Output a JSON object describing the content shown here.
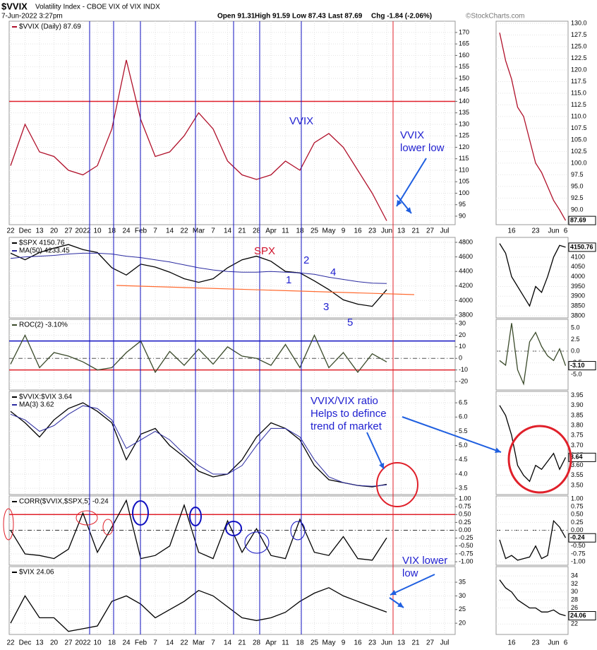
{
  "header": {
    "symbol": "$VVIX",
    "description": "Volatility Index - CBOE VIX of VIX INDX",
    "date": "7-Jun-2022 3:27pm",
    "open": "Open 91.31",
    "high": "High 91.59",
    "low": "Low 87.43",
    "last": "Last 87.69",
    "change": "Chg -1.84 (-2.06%)",
    "source": "©StockCharts.com"
  },
  "chart_data": {
    "type": "line",
    "categories": [
      "22",
      "Dec",
      "13",
      "20",
      "27",
      "2022",
      "10",
      "18",
      "24",
      "Feb",
      "7",
      "14",
      "22",
      "Mar",
      "7",
      "14",
      "21",
      "28",
      "Apr",
      "11",
      "18",
      "25",
      "May",
      "9",
      "16",
      "23",
      "Jun",
      "13",
      "21",
      "27",
      "Jul"
    ],
    "zoom_categories": [
      null,
      null,
      "16",
      null,
      null,
      null,
      "23",
      null,
      null,
      "Jun",
      null,
      "6"
    ],
    "panels": [
      {
        "ylim": [
          86.3,
          174.9
        ],
        "yticks": [
          90,
          95,
          100,
          105,
          110,
          115,
          120,
          125,
          130,
          135,
          140,
          145,
          150,
          155,
          160,
          165,
          170
        ],
        "hlines": [
          {
            "value": 140,
            "color": "#e0202a"
          }
        ],
        "series": [
          {
            "name": "$VVIX (Daily) 87.69",
            "color": "#b0102a",
            "values": [
              112,
              130,
              118,
              116,
              110,
              108,
              112,
              128,
              158,
              132,
              116,
              118,
              125,
              135,
              128,
              114,
              108,
              106,
              108,
              114,
              110,
              122,
              126,
              120,
              110,
              100,
              88,
              null,
              null,
              null,
              null
            ]
          }
        ],
        "zoom": {
          "ylim": [
            86.8,
            130.45
          ],
          "yticks": [
            {
              "value": 90,
              "label": "90.0"
            },
            92.5,
            {
              "value": 95,
              "label": "95.0"
            },
            97.5,
            {
              "value": 100,
              "label": "100.0"
            },
            102.5,
            {
              "value": 105,
              "label": "105.0"
            },
            107.5,
            {
              "value": 110,
              "label": "110.0"
            },
            112.5,
            {
              "value": 115,
              "label": "115.0"
            },
            117.5,
            {
              "value": 120,
              "label": "120.0"
            },
            122.5,
            {
              "value": 125,
              "label": "125.0"
            },
            127.5,
            {
              "value": 130,
              "label": "130.0"
            }
          ],
          "series": [
            {
              "color": "#b0102a",
              "values": [
                128,
                122,
                118,
                112,
                110,
                105,
                100,
                98,
                95,
                92,
                90,
                87.69
              ]
            }
          ],
          "last_label": "87.69"
        }
      },
      {
        "ylim": [
          3761,
          4868
        ],
        "yticks": [
          3800,
          4000,
          4200,
          4400,
          4600,
          4800
        ],
        "series": [
          {
            "name": "$SPX 4150.76",
            "color": "#000000",
            "values": [
              4650,
              4560,
              4660,
              4720,
              4770,
              4700,
              4660,
              4450,
              4350,
              4500,
              4460,
              4390,
              4300,
              4250,
              4300,
              4450,
              4560,
              4610,
              4540,
              4400,
              4380,
              4270,
              4150,
              4010,
              3950,
              3920,
              4150,
              null,
              null,
              null,
              null
            ]
          },
          {
            "name": "MA(50) 4233.45",
            "color": "#2a2aa0",
            "values": [
              4580,
              4600,
              4610,
              4620,
              4640,
              4650,
              4650,
              4640,
              4610,
              4590,
              4560,
              4530,
              4490,
              4450,
              4420,
              4400,
              4390,
              4390,
              4400,
              4390,
              4380,
              4360,
              4320,
              4290,
              4260,
              4240,
              4233.45,
              null,
              null,
              null,
              null
            ]
          }
        ],
        "zoom": {
          "ylim": [
            3789,
            4201
          ],
          "yticks": [
            3800,
            3850,
            3900,
            3950,
            4000,
            4050,
            4100
          ],
          "series": [
            {
              "color": "#000000",
              "values": [
                4170,
                4120,
                4000,
                3950,
                3900,
                3850,
                3950,
                3920,
                4000,
                4100,
                4160,
                4150.76
              ]
            }
          ],
          "last_label": "4150.76"
        }
      },
      {
        "ylim": [
          -27.3,
          33.7
        ],
        "yticks": [
          -20,
          -10,
          0,
          10,
          20,
          30
        ],
        "hlines": [
          {
            "value": 15,
            "color": "#1010c0"
          },
          {
            "value": -10,
            "color": "#e0202a"
          },
          {
            "value": 0,
            "color": "#555555",
            "dash": true
          }
        ],
        "series": [
          {
            "name": "ROC(2) -3.10%",
            "color": "#3a4a2a",
            "values": [
              -5,
              20,
              -8,
              5,
              2,
              -3,
              -10,
              -8,
              5,
              15,
              -12,
              6,
              -6,
              8,
              -5,
              10,
              2,
              0,
              -6,
              12,
              -8,
              20,
              -8,
              5,
              -12,
              4,
              -3.1,
              null,
              null,
              null,
              null
            ]
          }
        ],
        "zoom": {
          "ylim": [
            -8.3,
            6.8
          ],
          "yticks": [
            {
              "value": -5,
              "label": "-5.0"
            },
            -2.5,
            {
              "value": 0,
              "label": "0.0"
            },
            2.5,
            {
              "value": 5,
              "label": "5.0"
            }
          ],
          "series": [
            {
              "color": "#3a4a2a",
              "values": [
                -2,
                -3,
                6,
                -4,
                -7,
                2,
                4,
                1,
                -1,
                -2,
                0.5,
                -3.1
              ]
            }
          ],
          "last_label": "-3.10"
        }
      },
      {
        "ylim": [
          3.28,
          6.9
        ],
        "yticks": [
          3.5,
          {
            "value": 4,
            "label": "4.0"
          },
          4.5,
          {
            "value": 5,
            "label": "5.0"
          },
          5.5,
          {
            "value": 6,
            "label": "6.0"
          },
          6.5
        ],
        "series": [
          {
            "name": "$VVIX:$VIX 3.64",
            "color": "#000000",
            "values": [
              6.2,
              5.8,
              5.3,
              5.9,
              6.3,
              6.5,
              6.2,
              5.8,
              4.5,
              5.4,
              5.6,
              5.0,
              4.6,
              4.1,
              3.9,
              4.0,
              4.5,
              5.3,
              5.8,
              5.6,
              5.2,
              4.3,
              3.8,
              3.7,
              3.6,
              3.55,
              3.64,
              null,
              null,
              null,
              null
            ]
          },
          {
            "name": "MA(3) 3.62",
            "color": "#2a2aa0",
            "values": [
              6.1,
              5.9,
              5.5,
              5.7,
              6.1,
              6.4,
              6.3,
              5.9,
              4.9,
              5.2,
              5.5,
              5.2,
              4.7,
              4.3,
              4.0,
              4.0,
              4.3,
              5.0,
              5.6,
              5.6,
              5.3,
              4.5,
              3.9,
              3.7,
              3.6,
              3.57,
              3.62,
              null,
              null,
              null,
              null
            ]
          }
        ],
        "zoom": {
          "ylim": [
            3.454,
            3.97
          ],
          "yticks": [
            {
              "value": 3.5,
              "label": "3.50"
            },
            3.55,
            {
              "value": 3.6,
              "label": "3.60"
            },
            3.65,
            {
              "value": 3.7,
              "label": "3.70"
            },
            3.75,
            {
              "value": 3.8,
              "label": "3.80"
            },
            3.85,
            {
              "value": 3.9,
              "label": "3.90"
            },
            3.95
          ],
          "series": [
            {
              "color": "#000000",
              "values": [
                3.9,
                3.85,
                3.75,
                3.6,
                3.55,
                3.52,
                3.6,
                3.58,
                3.62,
                3.66,
                3.58,
                3.64
              ]
            }
          ],
          "last_label": "3.64"
        }
      },
      {
        "ylim": [
          -1.11,
          1.09
        ],
        "yticks": [
          {
            "value": -1,
            "label": "-1.00"
          },
          -0.75,
          {
            "value": -0.5,
            "label": "-0.50"
          },
          -0.25,
          {
            "value": 0,
            "label": "0.00"
          },
          0.25,
          {
            "value": 0.5,
            "label": "0.50"
          },
          0.75,
          {
            "value": 1,
            "label": "1.00"
          }
        ],
        "hlines": [
          {
            "value": 0.5,
            "color": "#e0202a"
          },
          {
            "value": 0,
            "color": "#333333",
            "dash": true
          }
        ],
        "series": [
          {
            "name": "CORR($VVIX,$SPX,5) -0.24",
            "color": "#000000",
            "values": [
              0.0,
              -0.75,
              -0.8,
              -0.9,
              -0.6,
              0.55,
              -0.7,
              0.1,
              0.95,
              -0.9,
              -0.8,
              -0.5,
              0.8,
              -0.7,
              -0.9,
              0.3,
              -0.7,
              0.05,
              -0.8,
              -0.9,
              0.35,
              -0.7,
              -0.8,
              -0.2,
              -0.9,
              -0.95,
              -0.24,
              null,
              null,
              null,
              null
            ]
          }
        ],
        "zoom": {
          "ylim": [
            -1.11,
            1.09
          ],
          "yticks": [
            {
              "value": -1,
              "label": "-1.00"
            },
            -0.75,
            {
              "value": -0.5,
              "label": "-0.50"
            },
            -0.25,
            {
              "value": 0,
              "label": "0.00"
            },
            0.25,
            {
              "value": 0.5,
              "label": "0.50"
            },
            0.75,
            {
              "value": 1,
              "label": "1.00"
            }
          ],
          "series": [
            {
              "color": "#000000",
              "values": [
                -0.3,
                -0.9,
                -0.8,
                -0.95,
                -0.9,
                -0.85,
                -0.5,
                -0.9,
                -0.8,
                0.3,
                0.1,
                -0.24
              ]
            }
          ],
          "last_label": "-0.24"
        }
      },
      {
        "ylim": [
          15.9,
          40.7
        ],
        "yticks": [
          20,
          25,
          30,
          35
        ],
        "series": [
          {
            "name": "$VIX 24.06",
            "color": "#000000",
            "values": [
              20,
              30,
              22,
              22,
              17,
              18,
              19,
              28,
              30,
              27,
              22,
              25,
              28,
              32,
              30,
              26,
              22,
              21,
              22,
              24,
              28,
              31,
              33,
              30,
              28,
              26,
              24.06,
              null,
              null,
              null,
              null
            ]
          }
        ],
        "zoom": {
          "ylim": [
            19.4,
            36.3
          ],
          "yticks": [
            22,
            26,
            28,
            30,
            32,
            34
          ],
          "series": [
            {
              "color": "#000000",
              "values": [
                33,
                31,
                30,
                28,
                27,
                26,
                26,
                25,
                25,
                25.5,
                24.5,
                24.06
              ]
            }
          ],
          "last_label": "24.06"
        }
      }
    ],
    "annotations": [
      "VVIX",
      "VVIX",
      "lower low",
      "SPX",
      "1",
      "2",
      "3",
      "4",
      "5",
      "VVIX/VIX ratio",
      "Helps to defince",
      "trend of market",
      "VIX lower",
      "low"
    ]
  }
}
